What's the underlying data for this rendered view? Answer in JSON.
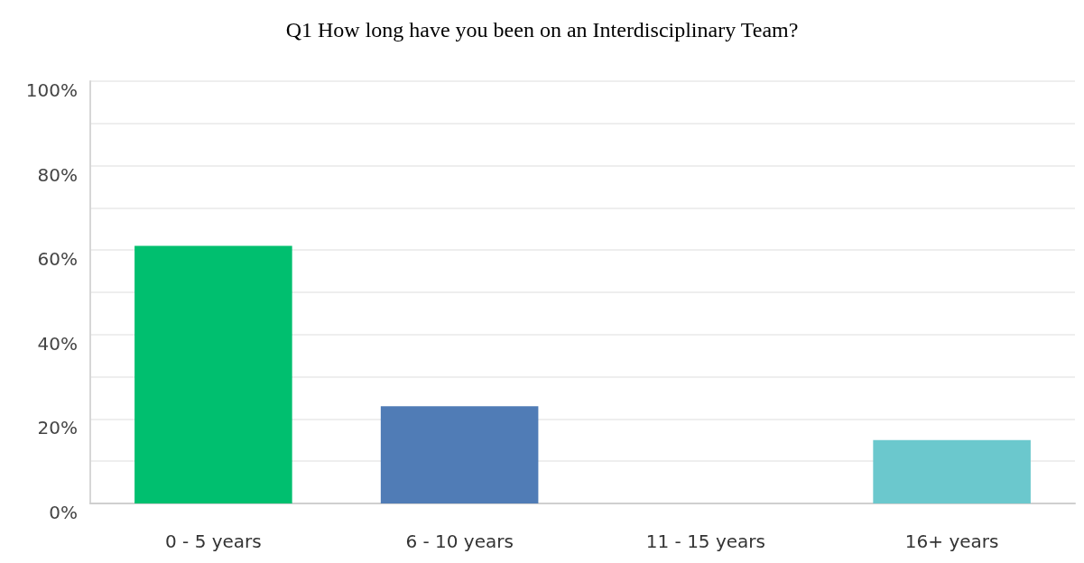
{
  "chart_data": {
    "type": "bar",
    "title": "Q1 How long have you been on an Interdisciplinary Team?",
    "categories": [
      "0 - 5 years",
      "6 - 10 years",
      "11 - 15 years",
      "16+ years"
    ],
    "values": [
      61,
      23,
      0,
      15
    ],
    "colors": [
      "#00bf6f",
      "#507cb6",
      "#f9be00",
      "#6bc8cd"
    ],
    "ylim": [
      0,
      100
    ],
    "yticks": [
      {
        "value": 0,
        "label": "0%"
      },
      {
        "value": 10,
        "label": null
      },
      {
        "value": 20,
        "label": "20%"
      },
      {
        "value": 30,
        "label": null
      },
      {
        "value": 40,
        "label": "40%"
      },
      {
        "value": 50,
        "label": null
      },
      {
        "value": 60,
        "label": "60%"
      },
      {
        "value": 70,
        "label": null
      },
      {
        "value": 80,
        "label": "80%"
      },
      {
        "value": 90,
        "label": null
      },
      {
        "value": 100,
        "label": "100%"
      }
    ],
    "grid": "y"
  }
}
